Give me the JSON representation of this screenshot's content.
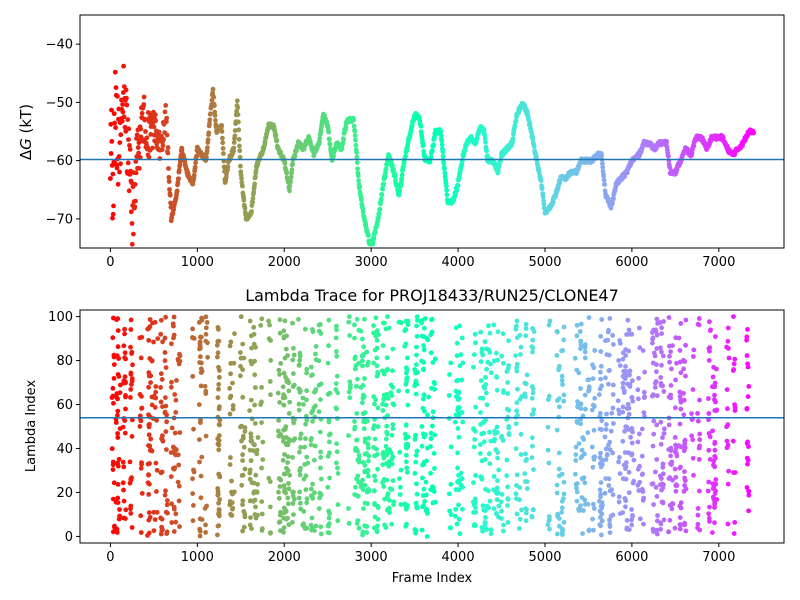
{
  "chart_data": [
    {
      "type": "scatter",
      "title": "",
      "xlabel": "",
      "ylabel": "ΔG (kT)",
      "ylabel_parts": {
        "delta": "Δ",
        "var": "G",
        "unit": " (kT)"
      },
      "xlim": [
        -350,
        7750
      ],
      "ylim": [
        -75,
        -35
      ],
      "xticks": [
        0,
        1000,
        2000,
        3000,
        4000,
        5000,
        6000,
        7000
      ],
      "xtick_labels": [
        "0",
        "1000",
        "2000",
        "3000",
        "4000",
        "5000",
        "6000",
        "7000"
      ],
      "yticks": [
        -70,
        -60,
        -50,
        -40
      ],
      "ytick_labels": [
        "−70",
        "−60",
        "−50",
        "−40"
      ],
      "hline": -59.8,
      "hline_color": "#1f77b4",
      "colormap": "rainbow (reversed: red at frame 0, violet at last frame)",
      "trace_knots": [
        [
          0,
          -55
        ],
        [
          30,
          -65
        ],
        [
          60,
          -50
        ],
        [
          100,
          -60
        ],
        [
          150,
          -48
        ],
        [
          200,
          -58
        ],
        [
          260,
          -70
        ],
        [
          300,
          -60
        ],
        [
          380,
          -52
        ],
        [
          450,
          -56
        ],
        [
          520,
          -54
        ],
        [
          580,
          -58
        ],
        [
          640,
          -52
        ],
        [
          700,
          -70
        ],
        [
          760,
          -66
        ],
        [
          820,
          -58
        ],
        [
          880,
          -62
        ],
        [
          950,
          -64
        ],
        [
          1000,
          -58
        ],
        [
          1100,
          -60
        ],
        [
          1150,
          -52
        ],
        [
          1180,
          -48
        ],
        [
          1220,
          -55
        ],
        [
          1280,
          -54
        ],
        [
          1320,
          -64
        ],
        [
          1360,
          -60
        ],
        [
          1420,
          -58
        ],
        [
          1460,
          -50
        ],
        [
          1500,
          -62
        ],
        [
          1560,
          -70
        ],
        [
          1620,
          -69
        ],
        [
          1680,
          -61
        ],
        [
          1760,
          -58
        ],
        [
          1820,
          -54
        ],
        [
          1880,
          -54
        ],
        [
          1930,
          -58
        ],
        [
          2000,
          -60
        ],
        [
          2060,
          -65
        ],
        [
          2100,
          -60
        ],
        [
          2160,
          -57
        ],
        [
          2220,
          -58
        ],
        [
          2280,
          -56
        ],
        [
          2340,
          -59
        ],
        [
          2400,
          -57
        ],
        [
          2450,
          -52
        ],
        [
          2500,
          -54
        ],
        [
          2550,
          -60
        ],
        [
          2600,
          -57
        ],
        [
          2660,
          -58
        ],
        [
          2720,
          -53
        ],
        [
          2800,
          -53
        ],
        [
          2860,
          -64
        ],
        [
          2920,
          -70
        ],
        [
          2980,
          -74
        ],
        [
          3020,
          -74
        ],
        [
          3080,
          -70
        ],
        [
          3140,
          -64
        ],
        [
          3200,
          -59
        ],
        [
          3260,
          -62
        ],
        [
          3320,
          -66
        ],
        [
          3380,
          -60
        ],
        [
          3440,
          -56
        ],
        [
          3500,
          -52
        ],
        [
          3560,
          -53
        ],
        [
          3620,
          -60
        ],
        [
          3680,
          -60
        ],
        [
          3740,
          -55
        ],
        [
          3800,
          -55
        ],
        [
          3840,
          -61
        ],
        [
          3880,
          -67
        ],
        [
          3940,
          -67
        ],
        [
          4000,
          -64
        ],
        [
          4060,
          -59
        ],
        [
          4100,
          -57
        ],
        [
          4140,
          -56
        ],
        [
          4200,
          -57
        ],
        [
          4260,
          -54
        ],
        [
          4300,
          -55
        ],
        [
          4340,
          -60
        ],
        [
          4400,
          -60
        ],
        [
          4460,
          -62
        ],
        [
          4500,
          -59
        ],
        [
          4560,
          -58
        ],
        [
          4620,
          -57
        ],
        [
          4680,
          -52
        ],
        [
          4740,
          -50
        ],
        [
          4800,
          -52
        ],
        [
          4880,
          -58
        ],
        [
          4960,
          -64
        ],
        [
          5000,
          -69
        ],
        [
          5060,
          -68
        ],
        [
          5120,
          -66
        ],
        [
          5180,
          -63
        ],
        [
          5240,
          -63
        ],
        [
          5300,
          -62
        ],
        [
          5360,
          -62
        ],
        [
          5420,
          -60
        ],
        [
          5480,
          -60
        ],
        [
          5540,
          -60
        ],
        [
          5600,
          -59
        ],
        [
          5650,
          -59
        ],
        [
          5700,
          -66
        ],
        [
          5760,
          -68
        ],
        [
          5820,
          -64
        ],
        [
          5880,
          -63
        ],
        [
          5940,
          -62
        ],
        [
          6000,
          -60
        ],
        [
          6080,
          -59
        ],
        [
          6140,
          -57
        ],
        [
          6200,
          -57
        ],
        [
          6260,
          -58
        ],
        [
          6320,
          -57
        ],
        [
          6400,
          -57
        ],
        [
          6440,
          -62
        ],
        [
          6500,
          -62
        ],
        [
          6560,
          -60
        ],
        [
          6620,
          -58
        ],
        [
          6680,
          -59
        ],
        [
          6740,
          -56
        ],
        [
          6800,
          -56
        ],
        [
          6860,
          -58
        ],
        [
          6920,
          -56
        ],
        [
          6980,
          -56
        ],
        [
          7040,
          -56
        ],
        [
          7100,
          -58
        ],
        [
          7160,
          -59
        ],
        [
          7220,
          -58
        ],
        [
          7280,
          -57
        ],
        [
          7340,
          -55
        ],
        [
          7400,
          -55
        ]
      ]
    },
    {
      "type": "scatter",
      "title": "Lambda Trace for PROJ18433/RUN25/CLONE47",
      "xlabel": "Frame Index",
      "ylabel": "Lambda Index",
      "xlim": [
        -350,
        7750
      ],
      "ylim": [
        -3,
        103
      ],
      "xticks": [
        0,
        1000,
        2000,
        3000,
        4000,
        5000,
        6000,
        7000
      ],
      "xtick_labels": [
        "0",
        "1000",
        "2000",
        "3000",
        "4000",
        "5000",
        "6000",
        "7000"
      ],
      "yticks": [
        0,
        20,
        40,
        60,
        80,
        100
      ],
      "ytick_labels": [
        "0",
        "20",
        "40",
        "60",
        "80",
        "100"
      ],
      "hline": 54,
      "hline_color": "#1f77b4",
      "colormap": "rainbow (reversed: red at frame 0, violet at last frame)",
      "frame_range": [
        0,
        7400
      ],
      "lambda_range": [
        0,
        100
      ],
      "block_frames": 40
    }
  ]
}
